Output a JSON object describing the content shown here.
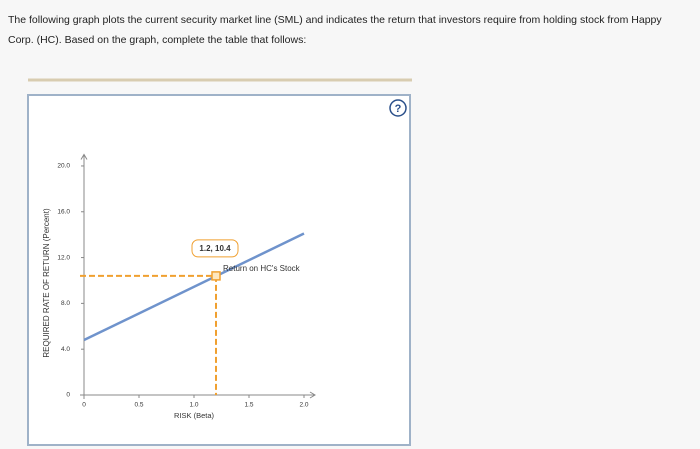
{
  "question": "The following graph plots the current security market line (SML) and indicates the return that investors require from holding stock from Happy Corp. (HC). Based on the graph, complete the table that follows:",
  "chart_data": {
    "type": "line",
    "ylabel": "REQUIRED RATE OF RETURN (Percent)",
    "xlabel": "RISK (Beta)",
    "xlim": [
      0,
      2.1
    ],
    "ylim": [
      0,
      21
    ],
    "xticks": [
      0,
      0.5,
      {
        "value": 1,
        "label": "1.0"
      },
      1.5,
      {
        "value": 2,
        "label": "2.0"
      }
    ],
    "yticks": [
      0,
      {
        "value": 4,
        "label": "4.0"
      },
      {
        "value": 8,
        "label": "8.0"
      },
      {
        "value": 12,
        "label": "12.0"
      },
      {
        "value": 16,
        "label": "16.0"
      },
      {
        "value": 20,
        "label": "20.0"
      }
    ],
    "series": [
      {
        "color": "#6f93cc",
        "x": [
          0,
          2
        ],
        "values": [
          4.8,
          14.1
        ]
      }
    ],
    "point": {
      "x": 1.2,
      "y": 10.4,
      "label": "1.2, 10.4",
      "annotation": "Return on HC's Stock",
      "color": "#f0a030"
    }
  }
}
